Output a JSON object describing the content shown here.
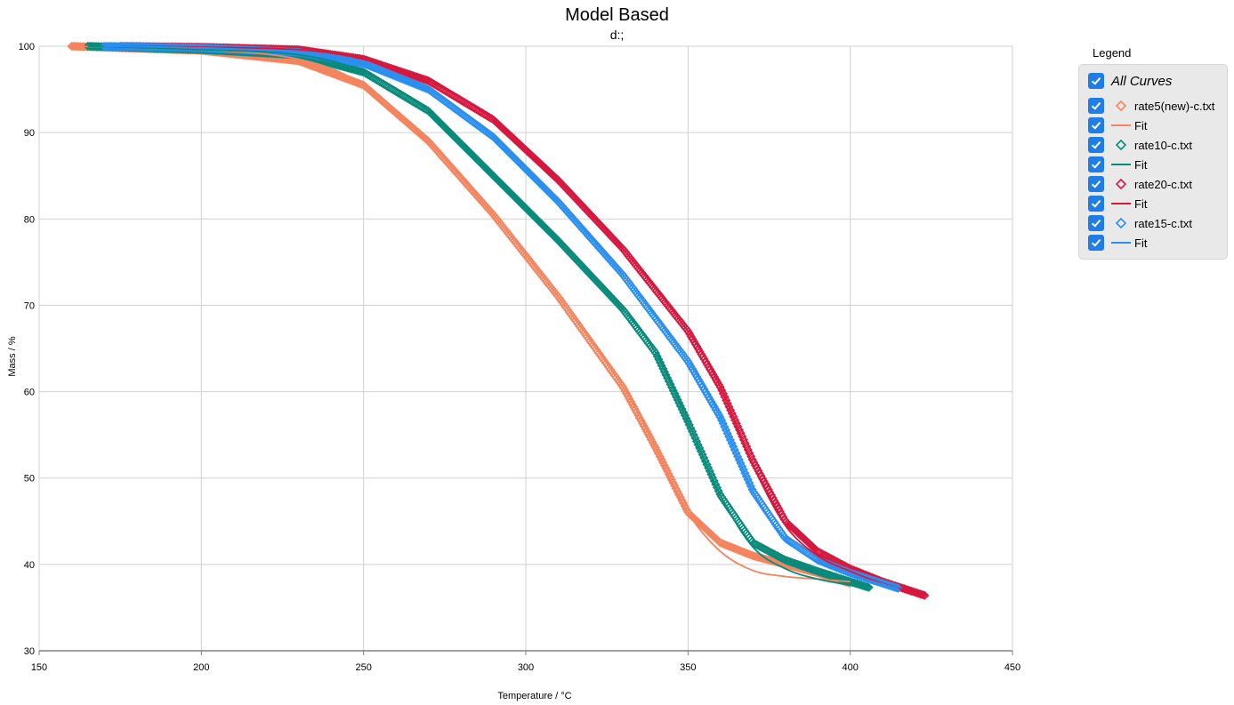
{
  "chart_data": {
    "type": "scatter",
    "title": "Model Based",
    "subtitle": "d:;",
    "xlabel": "Temperature / °C",
    "ylabel": "Mass / %",
    "xlim": [
      150,
      450
    ],
    "ylim": [
      30,
      100
    ],
    "xticks": [
      150,
      200,
      250,
      300,
      350,
      400,
      450
    ],
    "yticks": [
      30,
      40,
      50,
      60,
      70,
      80,
      90,
      100
    ],
    "grid": true,
    "legend_position": "right",
    "series": [
      {
        "name": "rate5(new)-c.txt",
        "fit_name": "Fit",
        "color": "#f4845f",
        "points": [
          [
            160,
            100
          ],
          [
            200,
            99.5
          ],
          [
            230,
            98.3
          ],
          [
            250,
            95.5
          ],
          [
            270,
            89
          ],
          [
            290,
            80.5
          ],
          [
            310,
            71
          ],
          [
            330,
            60.5
          ],
          [
            340,
            53.5
          ],
          [
            350,
            46
          ],
          [
            360,
            42.5
          ],
          [
            370,
            41
          ],
          [
            380,
            40
          ],
          [
            390,
            39
          ],
          [
            400,
            37.8
          ]
        ],
        "fit": [
          [
            160,
            100
          ],
          [
            200,
            99.6
          ],
          [
            230,
            98.5
          ],
          [
            250,
            95.5
          ],
          [
            270,
            89
          ],
          [
            290,
            80.5
          ],
          [
            310,
            71
          ],
          [
            330,
            60.5
          ],
          [
            340,
            53.5
          ],
          [
            350,
            46
          ],
          [
            360,
            41.5
          ],
          [
            370,
            39.3
          ],
          [
            380,
            38.6
          ],
          [
            390,
            38.3
          ],
          [
            400,
            38
          ]
        ]
      },
      {
        "name": "rate10-c.txt",
        "fit_name": "Fit",
        "color": "#0a8a7a",
        "points": [
          [
            165,
            100
          ],
          [
            200,
            99.6
          ],
          [
            230,
            99
          ],
          [
            250,
            97
          ],
          [
            270,
            92.5
          ],
          [
            290,
            85
          ],
          [
            310,
            77.5
          ],
          [
            330,
            69.5
          ],
          [
            340,
            64.5
          ],
          [
            350,
            56.5
          ],
          [
            360,
            48
          ],
          [
            370,
            42.5
          ],
          [
            380,
            40.5
          ],
          [
            390,
            39.2
          ],
          [
            400,
            38
          ],
          [
            406,
            37.3
          ]
        ],
        "fit": [
          [
            165,
            100
          ],
          [
            200,
            99.6
          ],
          [
            230,
            99
          ],
          [
            250,
            97
          ],
          [
            270,
            92.5
          ],
          [
            290,
            85
          ],
          [
            310,
            77.5
          ],
          [
            330,
            69.5
          ],
          [
            340,
            64.5
          ],
          [
            350,
            56.5
          ],
          [
            360,
            48
          ],
          [
            370,
            42
          ],
          [
            380,
            39.5
          ],
          [
            390,
            38.3
          ],
          [
            400,
            37.6
          ],
          [
            406,
            37.3
          ]
        ]
      },
      {
        "name": "rate20-c.txt",
        "fit_name": "Fit",
        "color": "#d6183f",
        "points": [
          [
            175,
            100
          ],
          [
            200,
            99.9
          ],
          [
            230,
            99.6
          ],
          [
            250,
            98.5
          ],
          [
            270,
            96
          ],
          [
            290,
            91.5
          ],
          [
            310,
            84.5
          ],
          [
            330,
            76.5
          ],
          [
            350,
            67
          ],
          [
            360,
            60.5
          ],
          [
            370,
            52
          ],
          [
            380,
            45
          ],
          [
            390,
            41.5
          ],
          [
            400,
            39.5
          ],
          [
            410,
            38
          ],
          [
            423,
            36.4
          ]
        ],
        "fit": [
          [
            175,
            100
          ],
          [
            200,
            99.9
          ],
          [
            230,
            99.6
          ],
          [
            250,
            98.5
          ],
          [
            270,
            96
          ],
          [
            290,
            91.5
          ],
          [
            310,
            84.5
          ],
          [
            330,
            76.5
          ],
          [
            350,
            67
          ],
          [
            360,
            60.5
          ],
          [
            370,
            51.5
          ],
          [
            380,
            44.5
          ],
          [
            390,
            41
          ],
          [
            400,
            39.2
          ],
          [
            410,
            37.8
          ],
          [
            423,
            36.4
          ]
        ]
      },
      {
        "name": "rate15-c.txt",
        "fit_name": "Fit",
        "color": "#2b8fef",
        "points": [
          [
            170,
            100
          ],
          [
            200,
            99.8
          ],
          [
            230,
            99.3
          ],
          [
            250,
            98
          ],
          [
            270,
            95
          ],
          [
            290,
            89.5
          ],
          [
            310,
            82
          ],
          [
            330,
            73.5
          ],
          [
            350,
            63.5
          ],
          [
            360,
            57
          ],
          [
            370,
            48.5
          ],
          [
            380,
            43
          ],
          [
            390,
            40.5
          ],
          [
            400,
            39
          ],
          [
            415,
            37.2
          ]
        ],
        "fit": [
          [
            170,
            100
          ],
          [
            200,
            99.8
          ],
          [
            230,
            99.3
          ],
          [
            250,
            98
          ],
          [
            270,
            95
          ],
          [
            290,
            89.5
          ],
          [
            310,
            82
          ],
          [
            330,
            73.5
          ],
          [
            350,
            63.5
          ],
          [
            360,
            57
          ],
          [
            370,
            48.5
          ],
          [
            380,
            43
          ],
          [
            390,
            40.3
          ],
          [
            400,
            38.8
          ],
          [
            415,
            37.2
          ]
        ]
      }
    ]
  },
  "legend": {
    "title": "Legend",
    "all_label": "All Curves"
  }
}
